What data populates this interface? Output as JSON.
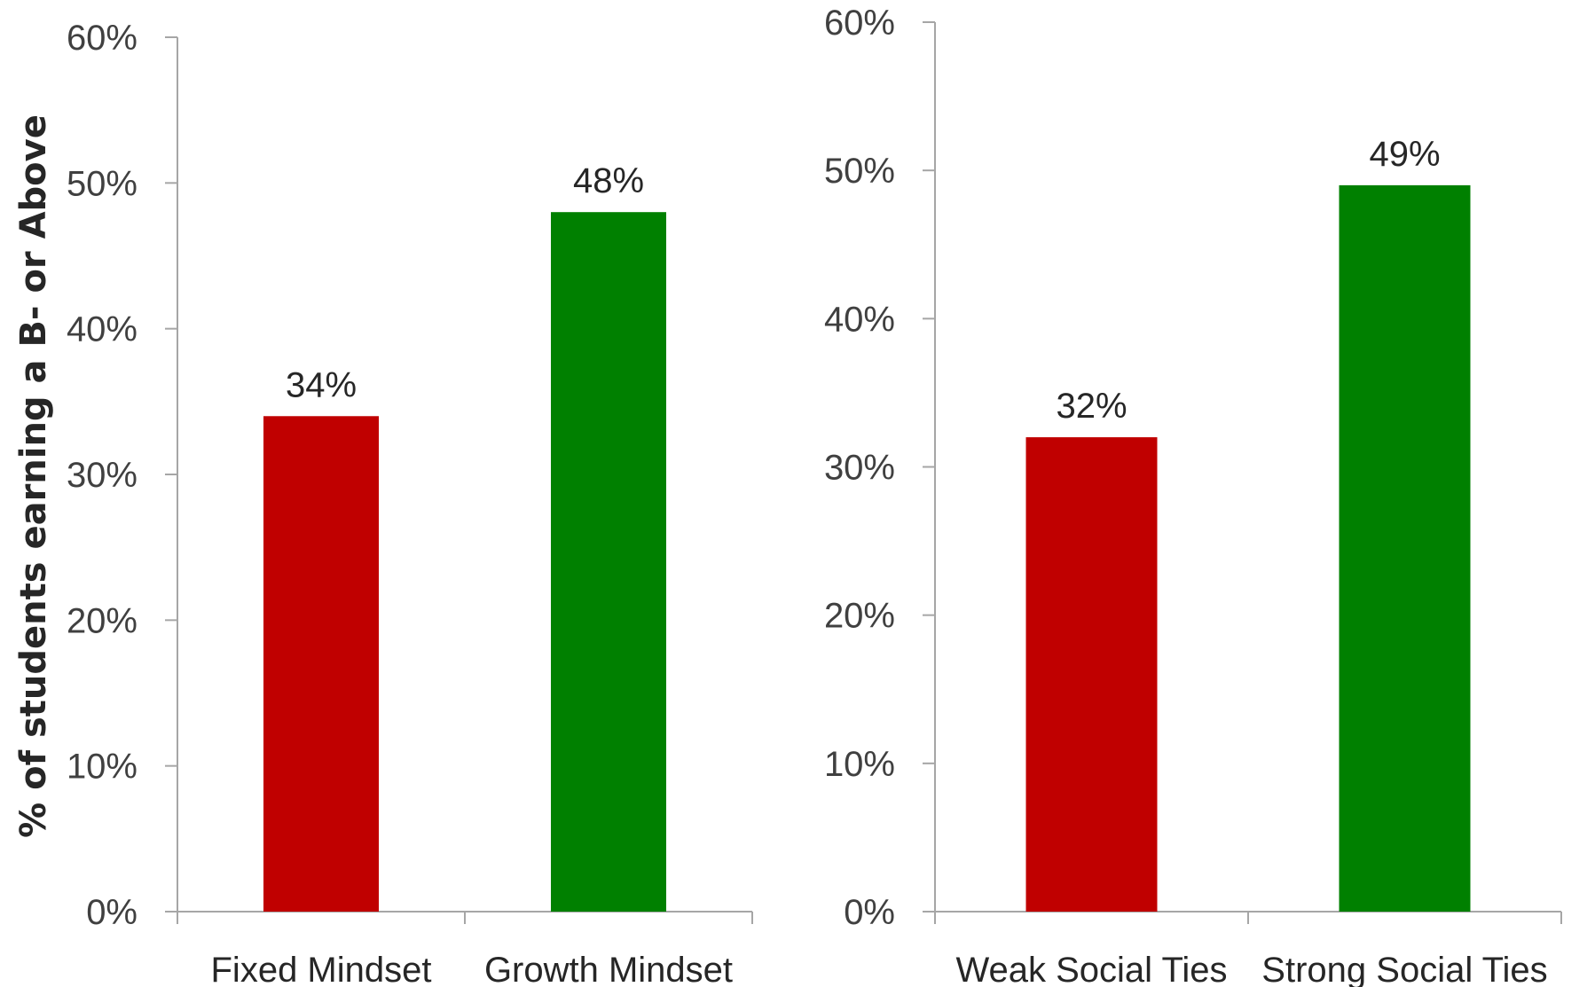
{
  "chart_data": [
    {
      "type": "bar",
      "categories": [
        "Fixed Mindset",
        "Growth Mindset"
      ],
      "values": [
        34,
        48
      ],
      "value_labels": [
        "34%",
        "48%"
      ],
      "colors": [
        "#c00000",
        "#008000"
      ],
      "ylabel": "% of students earning a B- or Above",
      "ylim": [
        0,
        60
      ],
      "yticks": [
        0,
        10,
        20,
        30,
        40,
        50,
        60
      ],
      "ytick_labels": [
        "0%",
        "10%",
        "20%",
        "30%",
        "40%",
        "50%",
        "60%"
      ],
      "grid": false,
      "legend": "none"
    },
    {
      "type": "bar",
      "categories": [
        "Weak Social Ties",
        "Strong Social Ties"
      ],
      "values": [
        32,
        49
      ],
      "value_labels": [
        "32%",
        "49%"
      ],
      "colors": [
        "#c00000",
        "#008000"
      ],
      "ylabel": "",
      "ylim": [
        0,
        60
      ],
      "yticks": [
        0,
        10,
        20,
        30,
        40,
        50,
        60
      ],
      "ytick_labels": [
        "0%",
        "10%",
        "20%",
        "30%",
        "40%",
        "50%",
        "60%"
      ],
      "grid": false,
      "legend": "none"
    }
  ],
  "colors": {
    "axis": "#a6a6a6",
    "text": "#262626",
    "tick_text": "#404040"
  }
}
